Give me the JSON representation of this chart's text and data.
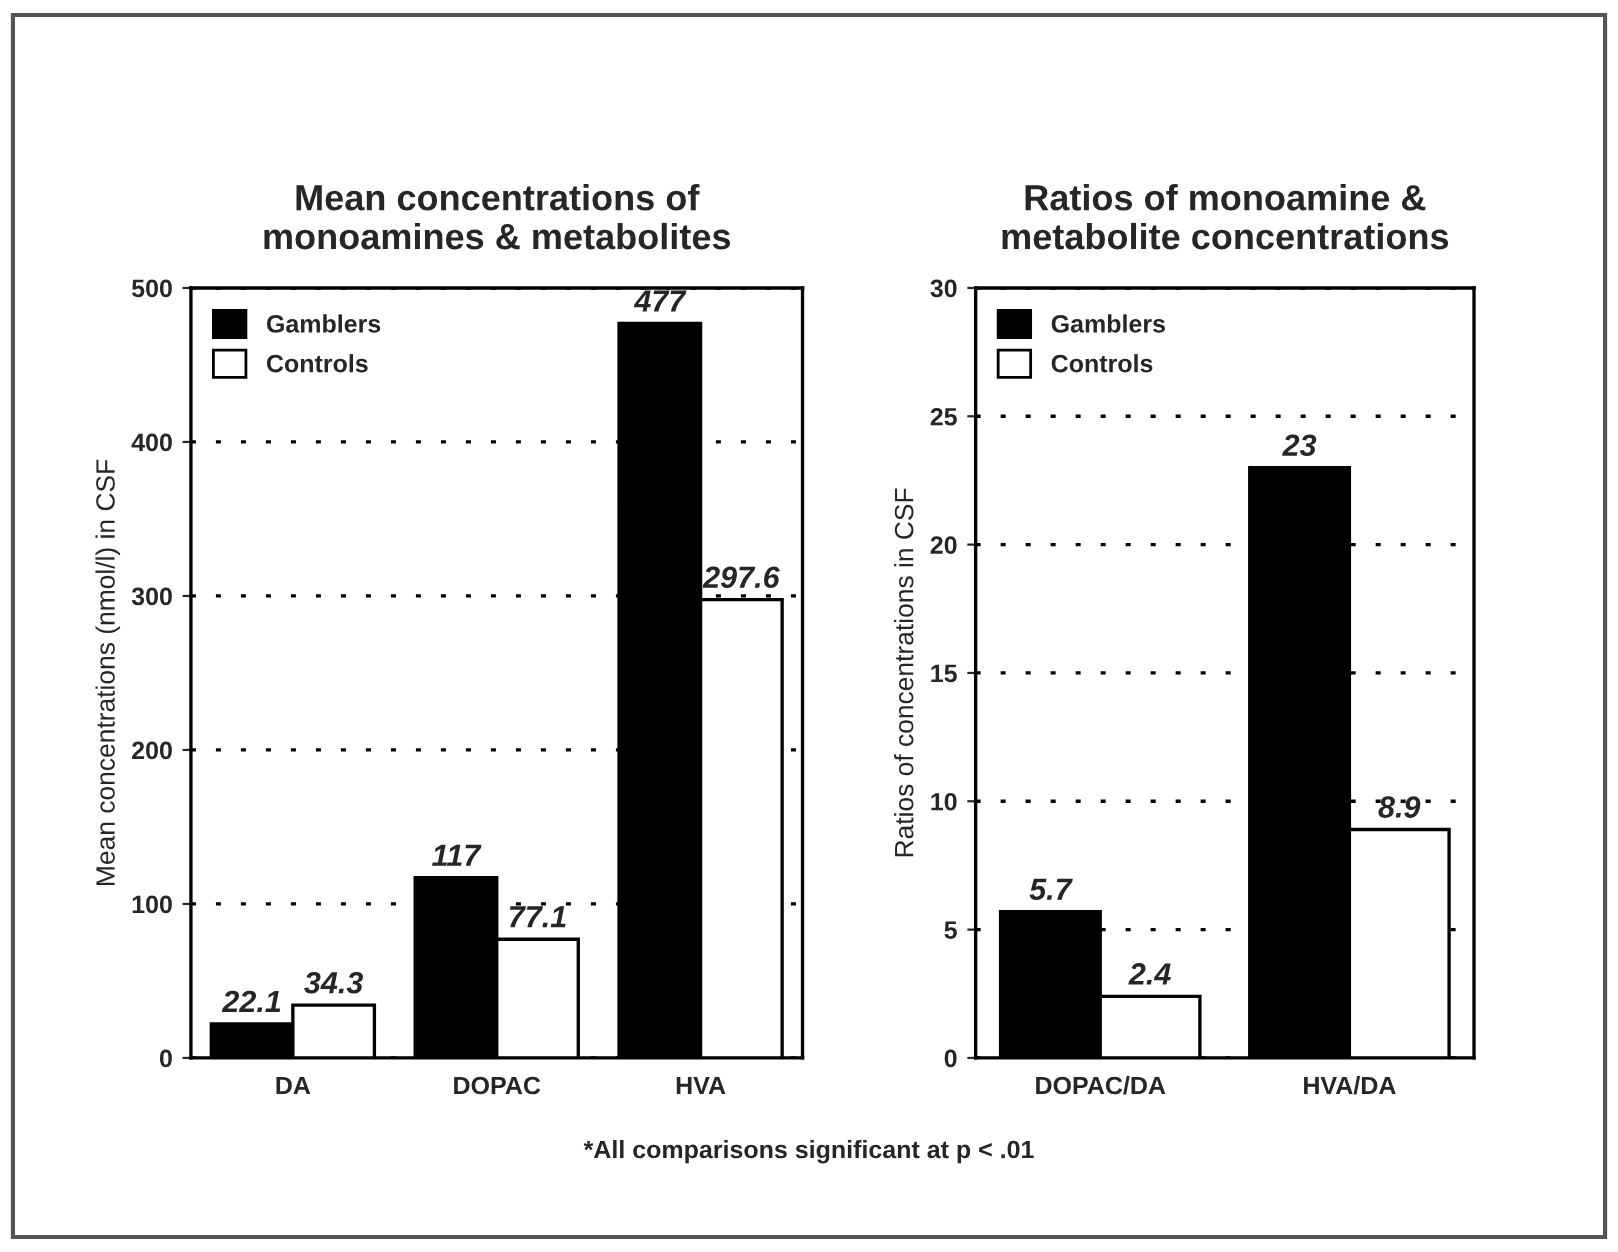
{
  "chart_data": [
    {
      "type": "bar",
      "title": "Mean concentrations of\nmonoamines & metabolites",
      "ylabel": "Mean concentrations (nmol/l) in CSF",
      "categories": [
        "DA",
        "DOPAC",
        "HVA"
      ],
      "series": [
        {
          "name": "Gamblers",
          "color": "#000000",
          "values": [
            22.1,
            117,
            477
          ]
        },
        {
          "name": "Controls",
          "color": "#ffffff",
          "values": [
            34.3,
            77.1,
            297.6
          ]
        }
      ],
      "ylim": [
        0,
        500
      ],
      "yticks": [
        0,
        100,
        200,
        300,
        400,
        500
      ],
      "grid": "y",
      "legend": "top left",
      "data_labels": true,
      "annotations": [
        "*All comparisons significant at p < .01"
      ]
    },
    {
      "type": "bar",
      "title": "Ratios of monoamine &\nmetabolite concentrations",
      "ylabel": "Ratios of concentrations in CSF",
      "categories": [
        "DOPAC/DA",
        "HVA/DA"
      ],
      "series": [
        {
          "name": "Gamblers",
          "color": "#000000",
          "values": [
            5.7,
            23
          ]
        },
        {
          "name": "Controls",
          "color": "#ffffff",
          "values": [
            2.4,
            8.9
          ]
        }
      ],
      "ylim": [
        0,
        30
      ],
      "yticks": [
        0,
        5,
        10,
        15,
        20,
        25,
        30
      ],
      "grid": "y",
      "legend": "top left",
      "data_labels": true
    }
  ]
}
